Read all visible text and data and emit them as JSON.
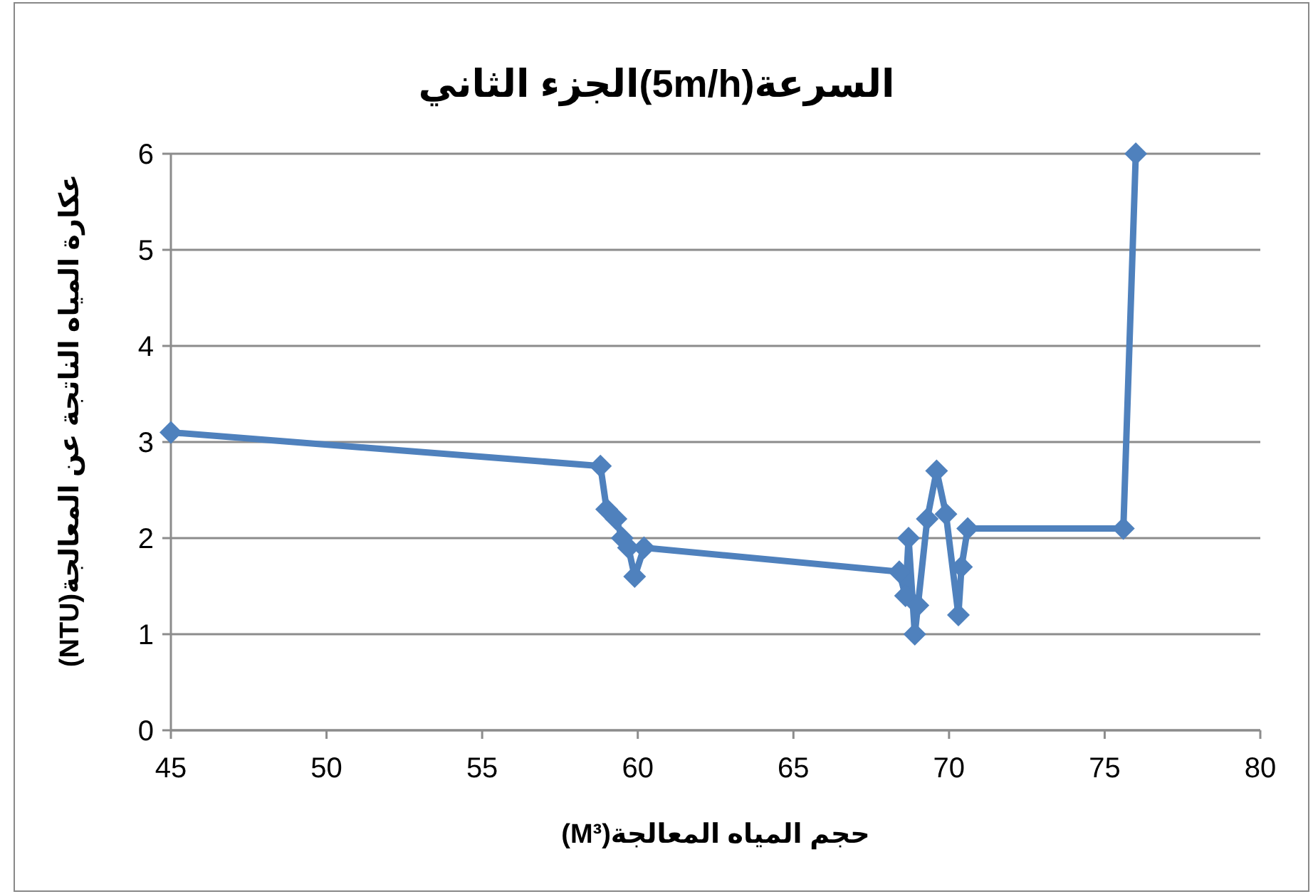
{
  "chart_data": {
    "type": "line",
    "title": "السرعة(5m/h)الجزء الثاني",
    "xlabel": "حجم المياه المعالجة(M³)",
    "ylabel": "عكارة المياه الناتجة عن المعالجة(NTU)",
    "xlim": [
      45,
      80
    ],
    "xticks": [
      45,
      50,
      55,
      60,
      65,
      70,
      75,
      80
    ],
    "ylim": [
      0,
      6
    ],
    "yticks": [
      0,
      1,
      2,
      3,
      4,
      5,
      6
    ],
    "grid": "y",
    "marker": "diamond",
    "line_style": "solid",
    "series": [
      {
        "color": "#4f81bd",
        "x": [
          45,
          58.8,
          59.0,
          59.3,
          59.5,
          59.7,
          59.9,
          60.2,
          68.4,
          68.6,
          68.7,
          68.9,
          69.0,
          69.3,
          69.6,
          69.9,
          70.3,
          70.4,
          70.6,
          75.6,
          76.0
        ],
        "values": [
          3.1,
          2.75,
          2.3,
          2.2,
          2.0,
          1.9,
          1.6,
          1.9,
          1.65,
          1.4,
          2.0,
          1.0,
          1.3,
          2.2,
          2.7,
          2.25,
          1.2,
          1.7,
          2.1,
          2.1,
          6
        ]
      }
    ]
  }
}
